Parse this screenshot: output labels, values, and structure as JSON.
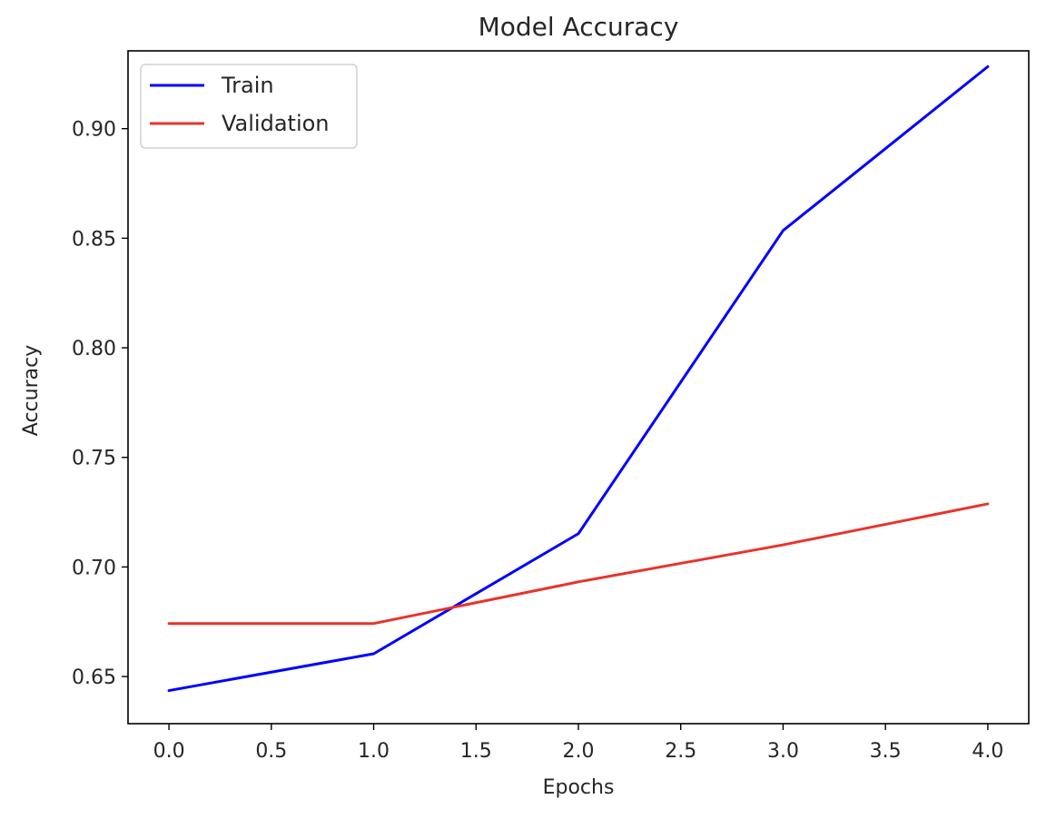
{
  "chart_data": {
    "type": "line",
    "title": "Model Accuracy",
    "xlabel": "Epochs",
    "ylabel": "Accuracy",
    "x": [
      0,
      1,
      2,
      3,
      4
    ],
    "xlim": [
      -0.2,
      4.2
    ],
    "ylim": [
      0.6285,
      0.9355
    ],
    "xticks": [
      0.0,
      0.5,
      1.0,
      1.5,
      2.0,
      2.5,
      3.0,
      3.5,
      4.0
    ],
    "xtick_labels": [
      "0.0",
      "0.5",
      "1.0",
      "1.5",
      "2.0",
      "2.5",
      "3.0",
      "3.5",
      "4.0"
    ],
    "yticks": [
      0.65,
      0.7,
      0.75,
      0.8,
      0.85,
      0.9
    ],
    "ytick_labels": [
      "0.65",
      "0.70",
      "0.75",
      "0.80",
      "0.85",
      "0.90"
    ],
    "grid": false,
    "legend_position": "top-left",
    "series": [
      {
        "name": "Train",
        "color": "#0000ff",
        "values": [
          0.6436,
          0.6604,
          0.7152,
          0.8535,
          0.9283
        ]
      },
      {
        "name": "Validation",
        "color": "#e8342a",
        "values": [
          0.6742,
          0.6742,
          0.6932,
          0.7101,
          0.7288
        ]
      }
    ]
  }
}
